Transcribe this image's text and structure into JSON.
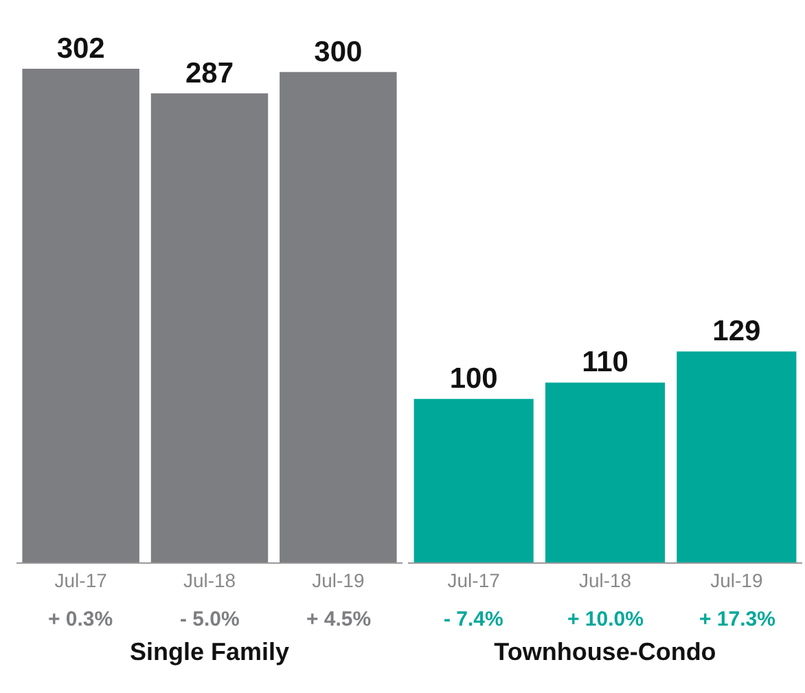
{
  "chart_data": [
    {
      "type": "bar",
      "xlabel": "Single Family",
      "categories": [
        "Jul-17",
        "Jul-18",
        "Jul-19"
      ],
      "values": [
        302,
        287,
        300
      ],
      "color": "#7d7e82",
      "data_labels": true,
      "tick_labels": "x",
      "annotations": [
        "+ 0.3%",
        "- 5.0%",
        "+ 4.5%"
      ]
    },
    {
      "type": "bar",
      "xlabel": "Townhouse-Condo",
      "categories": [
        "Jul-17",
        "Jul-18",
        "Jul-19"
      ],
      "values": [
        100,
        110,
        129
      ],
      "color": "#00a89a",
      "data_labels": true,
      "tick_labels": "x",
      "annotations": [
        "- 7.4%",
        "+ 10.0%",
        "+ 17.3%"
      ]
    }
  ]
}
